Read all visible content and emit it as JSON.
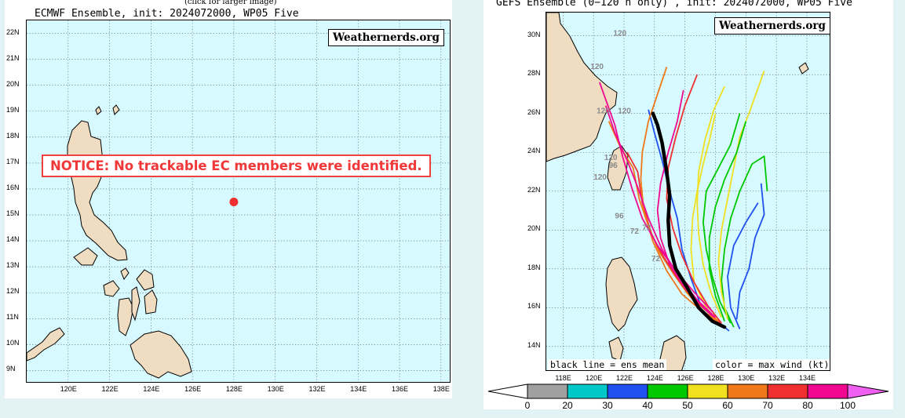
{
  "left_panel": {
    "click_note": "(click for larger image)",
    "title": "ECMWF Ensemble, init: 2024072000, WP05 Five",
    "brand": "Weathernerds.org",
    "notice": "NOTICE: No trackable EC members were identified.",
    "lat_labels": [
      "22N",
      "21N",
      "20N",
      "19N",
      "18N",
      "17N",
      "16N",
      "15N",
      "14N",
      "13N",
      "12N",
      "11N",
      "10N",
      "9N"
    ],
    "lon_labels": [
      "120E",
      "122E",
      "124E",
      "126E",
      "128E",
      "130E",
      "132E",
      "134E",
      "136E",
      "138E"
    ],
    "storm_position": {
      "lat": 15.5,
      "lon": 128.0
    },
    "storm_color": "#f03030"
  },
  "right_panel": {
    "title": "GEFS Ensemble (0−120 h only) , init: 2024072000, WP05 Five",
    "brand": "Weathernerds.org",
    "lat_labels": [
      "30N",
      "28N",
      "26N",
      "24N",
      "22N",
      "20N",
      "18N",
      "16N",
      "14N"
    ],
    "lon_labels": [
      "118E",
      "120E",
      "122E",
      "124E",
      "126E",
      "128E",
      "130E",
      "132E",
      "134E"
    ],
    "legend_left": "black line = ens mean",
    "legend_right": "color = max wind (kt)",
    "hour_labels": [
      "120",
      "120",
      "120",
      "120",
      "120",
      "120",
      "96",
      "96",
      "72",
      "72",
      "72"
    ],
    "colorbar": {
      "labels": [
        "0",
        "20",
        "30",
        "40",
        "50",
        "60",
        "70",
        "80",
        "100"
      ],
      "colors": [
        "#a0a0a0",
        "#00c8c8",
        "#2050f0",
        "#00c800",
        "#f0e020",
        "#f07818",
        "#f03030",
        "#f00890",
        "#f060f0"
      ]
    },
    "mean_track": [
      [
        128.6,
        15.0
      ],
      [
        127.8,
        15.3
      ],
      [
        126.9,
        16.0
      ],
      [
        126.1,
        17.1
      ],
      [
        125.4,
        18.0
      ],
      [
        125.0,
        19.2
      ],
      [
        124.9,
        20.5
      ],
      [
        125.0,
        21.8
      ],
      [
        124.8,
        23.0
      ],
      [
        124.5,
        24.5
      ],
      [
        124.2,
        25.4
      ],
      [
        123.9,
        26.0
      ]
    ]
  }
}
